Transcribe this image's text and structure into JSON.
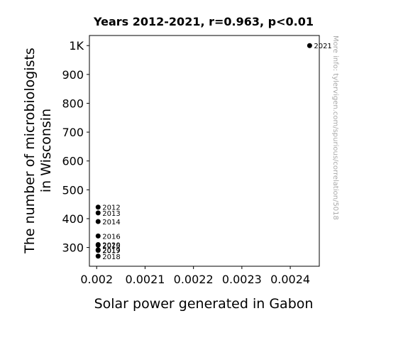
{
  "chart_data": {
    "type": "scatter",
    "title": "Years 2012-2021, r=0.963, p<0.01",
    "xlabel": "Solar power generated in Gabon",
    "ylabel_lines": [
      "The number of microbiologists",
      "in Wisconsin"
    ],
    "xlim": [
      0.001985,
      0.00246
    ],
    "ylim": [
      235,
      1035
    ],
    "x_ticks": [
      {
        "value": 0.002,
        "label": "0.002"
      },
      {
        "value": 0.0021,
        "label": "0.0021"
      },
      {
        "value": 0.0022,
        "label": "0.0022"
      },
      {
        "value": 0.0023,
        "label": "0.0023"
      },
      {
        "value": 0.0024,
        "label": "0.0024"
      }
    ],
    "y_ticks": [
      {
        "value": 300,
        "label": "300"
      },
      {
        "value": 400,
        "label": "400"
      },
      {
        "value": 500,
        "label": "500"
      },
      {
        "value": 600,
        "label": "600"
      },
      {
        "value": 700,
        "label": "700"
      },
      {
        "value": 800,
        "label": "800"
      },
      {
        "value": 900,
        "label": "900"
      },
      {
        "value": 1000,
        "label": "1K"
      }
    ],
    "points": [
      {
        "x": 0.002003,
        "y": 440,
        "label": "2012"
      },
      {
        "x": 0.002003,
        "y": 420,
        "label": "2013"
      },
      {
        "x": 0.002003,
        "y": 390,
        "label": "2014"
      },
      {
        "x": 0.002003,
        "y": 340,
        "label": "2016"
      },
      {
        "x": 0.002003,
        "y": 310,
        "label": "2020"
      },
      {
        "x": 0.002003,
        "y": 308,
        "label": "2015"
      },
      {
        "x": 0.002003,
        "y": 292,
        "label": "2019"
      },
      {
        "x": 0.002003,
        "y": 290,
        "label": "2017"
      },
      {
        "x": 0.002003,
        "y": 270,
        "label": "2018"
      },
      {
        "x": 0.00244,
        "y": 1000,
        "label": "2021"
      }
    ],
    "point_color": "#000000",
    "grid": false
  },
  "watermark": "More info: tylervigen.com/spurious/correlation/5018"
}
